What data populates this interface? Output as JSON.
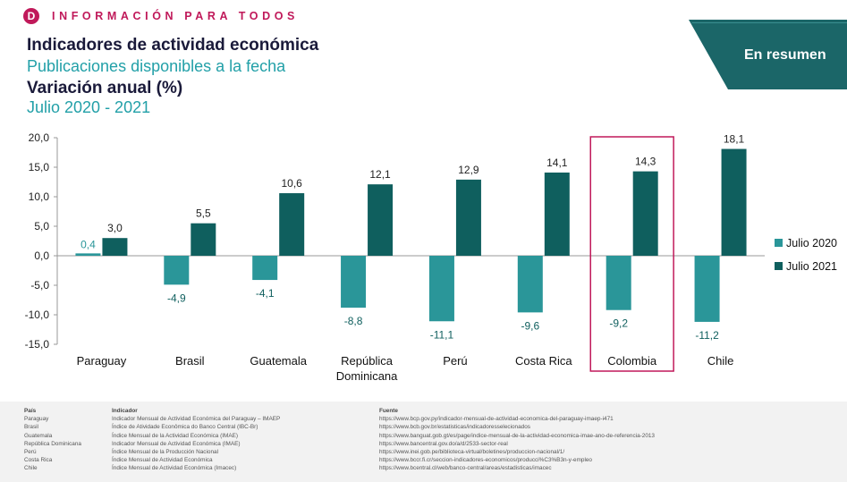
{
  "header": {
    "logo_letter": "D",
    "tagline": "INFORMACIÓN PARA TODOS",
    "title": "Indicadores de actividad económica",
    "subtitle": "Publicaciones disponibles a la fecha",
    "metric": "Variación anual (%)",
    "period": "Julio 2020 - 2021"
  },
  "banner": {
    "label": "En resumen"
  },
  "colors": {
    "accent": "#c0195a",
    "teal_dark": "#0f5f5e",
    "teal_light": "#2a9699",
    "navy": "#1a1a3a"
  },
  "chart_data": {
    "type": "bar",
    "categories": [
      "Paraguay",
      "Brasil",
      "Guatemala",
      "República Dominicana",
      "Perú",
      "Costa Rica",
      "Colombia",
      "Chile"
    ],
    "category_lines": [
      [
        "Paraguay"
      ],
      [
        "Brasil"
      ],
      [
        "Guatemala"
      ],
      [
        "República",
        "Dominicana"
      ],
      [
        "Perú"
      ],
      [
        "Costa Rica"
      ],
      [
        "Colombia"
      ],
      [
        "Chile"
      ]
    ],
    "series": [
      {
        "name": "Julio 2020",
        "color": "#2a9699",
        "values": [
          0.4,
          -4.9,
          -4.1,
          -8.8,
          -11.1,
          -9.6,
          -9.2,
          -11.2
        ],
        "labels": [
          "0,4",
          "-4,9",
          "-4,1",
          "-8,8",
          "-11,1",
          "-9,6",
          "-9,2",
          "-11,2"
        ]
      },
      {
        "name": "Julio 2021",
        "color": "#0f5f5e",
        "values": [
          3.0,
          5.5,
          10.6,
          12.1,
          12.9,
          14.1,
          14.3,
          18.1
        ],
        "labels": [
          "3,0",
          "5,5",
          "10,6",
          "12,1",
          "12,9",
          "14,1",
          "14,3",
          "18,1"
        ]
      }
    ],
    "y_ticks": [
      20,
      15,
      10,
      5,
      0,
      -5,
      -10,
      -15
    ],
    "y_tick_labels": [
      "20,0",
      "15,0",
      "10,0",
      "5,0",
      "0,0",
      "-5,0",
      "-10,0",
      "-15,0"
    ],
    "ylim": [
      -15,
      20
    ],
    "highlight_category": "Colombia",
    "highlight_color": "#c0195a",
    "legend_position": "right",
    "grid": false
  },
  "footer": {
    "headers": {
      "country": "País",
      "indicator": "Indicador",
      "source": "Fuente"
    },
    "rows": [
      {
        "country": "Paraguay",
        "indicator": "Indicador Mensual de Actividad Económica del Paraguay – IMAEP",
        "source": "https://www.bcp.gov.py/indicador-mensual-de-actividad-economica-del-paraguay-imaep-i471"
      },
      {
        "country": "Brasil",
        "indicator": "Índice de Atividade Econômica do Banco Central (IBC-Br)",
        "source": "https://www.bcb.gov.br/estatisticas/indicadoresselecionados"
      },
      {
        "country": "Guatemala",
        "indicator": "Índice Mensual de la Actividad Económica (IMAE)",
        "source": "https://www.banguat.gob.gt/es/page/indice-mensual-de-la-actividad-economica-imae-ano-de-referencia-2013"
      },
      {
        "country": "República Dominicana",
        "indicator": "Indicador Mensual de Actividad Económica (IMAE)",
        "source": "https://www.bancentral.gov.do/a/d/2533-sector-real"
      },
      {
        "country": "Perú",
        "indicator": "Índice Mensual de la Producción Nacional",
        "source": "https://www.inei.gob.pe/biblioteca-virtual/boletines/produccion-nacional/1/"
      },
      {
        "country": "Costa Rica",
        "indicator": "Índice Mensual de Actividad Económica",
        "source": "https://www.bccr.fi.cr/seccion-indicadores-economicos/producci%C3%B3n-y-empleo"
      },
      {
        "country": "Chile",
        "indicator": "Índice Mensual de Actividad Económica (Imacec)",
        "source": "https://www.bcentral.cl/web/banco-central/areas/estadisticas/imacec"
      }
    ]
  }
}
